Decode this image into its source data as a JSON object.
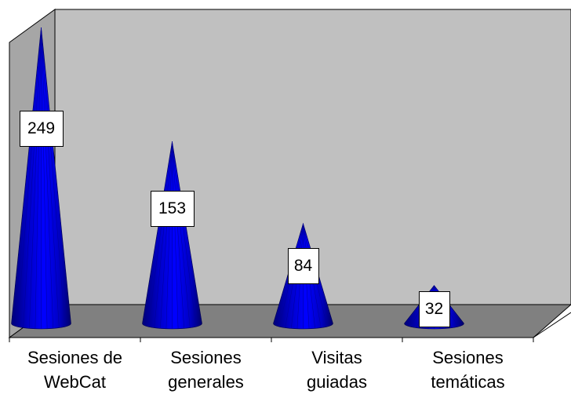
{
  "chart_data": {
    "type": "bar",
    "bar_shape": "cone",
    "categories": [
      "Sesiones de WebCat",
      "Sesiones generales",
      "Visitas guiadas",
      "Sesiones temáticas"
    ],
    "values": [
      249,
      153,
      84,
      32
    ],
    "data_labels": [
      "249",
      "153",
      "84",
      "32"
    ],
    "title": "",
    "xlabel": "",
    "ylabel": "",
    "ylim": [
      0,
      260
    ],
    "grid": false,
    "legend": "none",
    "colors": {
      "bar": "#0000ff",
      "bar_dark": "#00007a",
      "back_wall": "#c0c0c0",
      "side_wall": "#a6a6a6",
      "floor": "#808080"
    }
  }
}
